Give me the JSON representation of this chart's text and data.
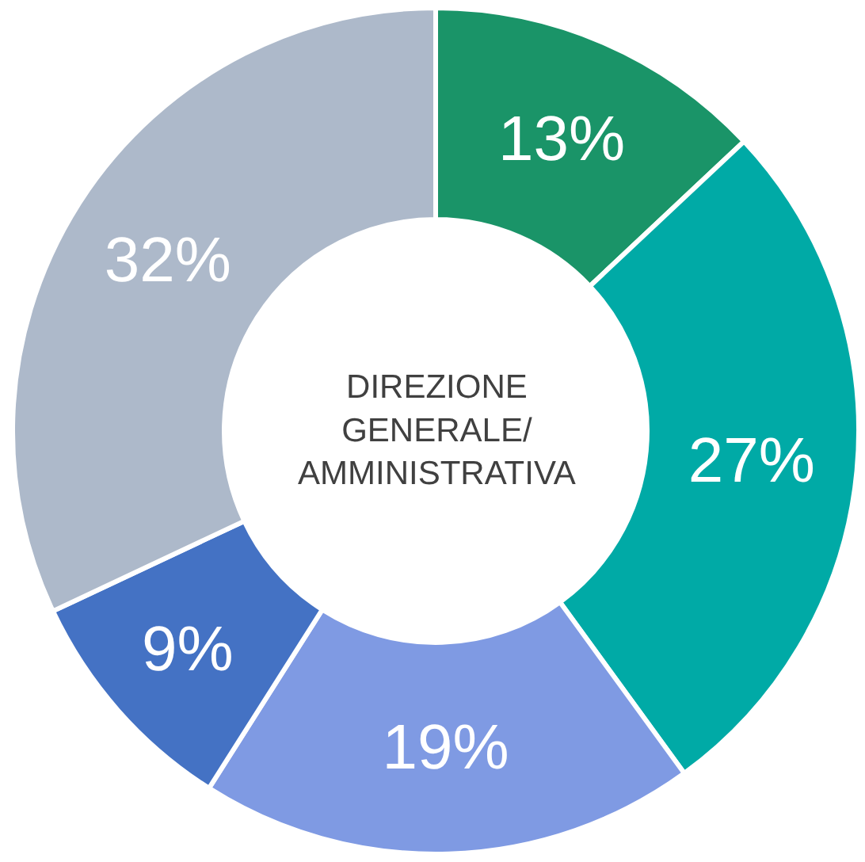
{
  "chart_data": {
    "type": "donut",
    "title": "DIREZIONE GENERALE/ AMMINISTRATIVA",
    "categories": [
      null,
      null,
      null,
      null,
      null
    ],
    "values": [
      13,
      27,
      19,
      9,
      32
    ],
    "value_labels": [
      "13%",
      "27%",
      "19%",
      "9%",
      "32%"
    ],
    "colors": [
      "#1a9468",
      "#00aaa6",
      "#7f9ae3",
      "#4472c4",
      "#adb9ca"
    ],
    "legend": false
  }
}
